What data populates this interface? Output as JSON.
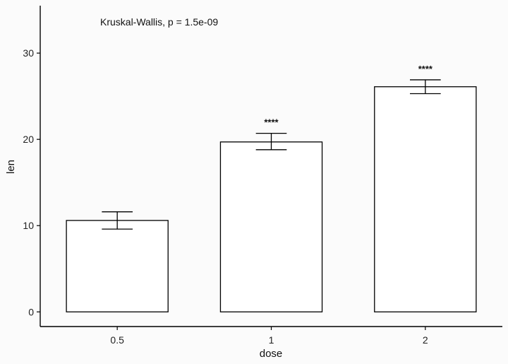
{
  "chart_data": {
    "type": "bar",
    "categories": [
      "0.5",
      "1",
      "2"
    ],
    "values": [
      10.6,
      19.7,
      26.1
    ],
    "error_low": [
      9.6,
      18.8,
      25.3
    ],
    "error_high": [
      11.6,
      20.7,
      26.9
    ],
    "significance": [
      "",
      "****",
      "****"
    ],
    "annotation": "Kruskal-Wallis, p = 1.5e-09",
    "xlabel": "dose",
    "ylabel": "len",
    "ylim": [
      -1.7,
      35.5
    ],
    "yticks": [
      0,
      10,
      20,
      30
    ],
    "grid": false,
    "colors": {
      "bar_fill": "#ffffff",
      "bar_stroke": "#000000",
      "background": "#fbfbfb"
    }
  }
}
